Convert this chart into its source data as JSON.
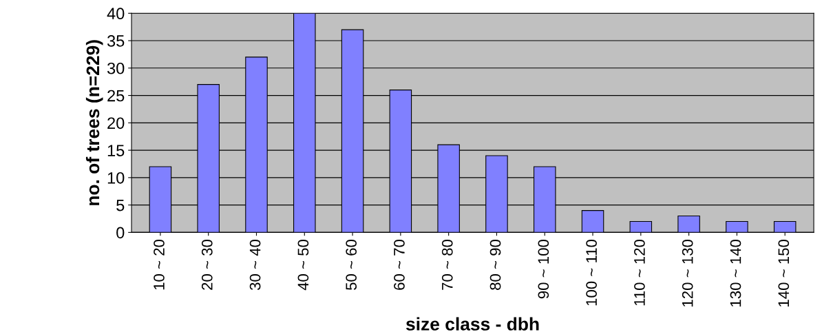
{
  "chart_data": {
    "type": "bar",
    "xlabel": "size class - dbh",
    "ylabel": "no. of trees (n=229)",
    "categories": [
      "10 ~ 20",
      "20 ~ 30",
      "30 ~ 40",
      "40 ~ 50",
      "50 ~ 60",
      "60 ~ 70",
      "70 ~ 80",
      "80 ~ 90",
      "90 ~ 100",
      "100 ~ 110",
      "110 ~ 120",
      "120 ~ 130",
      "130 ~ 140",
      "140 ~ 150"
    ],
    "values": [
      12,
      27,
      32,
      40,
      37,
      26,
      16,
      14,
      12,
      4,
      2,
      3,
      2,
      2
    ],
    "color": "#8080ff",
    "ylim": [
      0,
      40
    ],
    "yticks": [
      0,
      5,
      10,
      15,
      20,
      25,
      30,
      35,
      40
    ],
    "grid": "y"
  }
}
